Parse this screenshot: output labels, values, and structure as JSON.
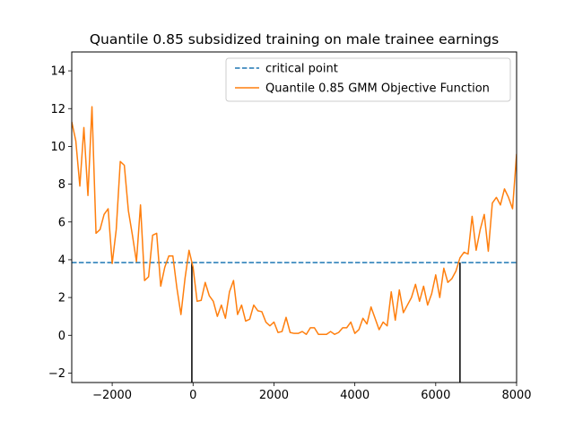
{
  "chart_data": {
    "type": "line",
    "title": "Quantile 0.85 subsidized training on male trainee earnings",
    "xlabel": "",
    "ylabel": "",
    "xlim": [
      -3000,
      8000
    ],
    "ylim": [
      -2.5,
      15
    ],
    "x_ticks": [
      -2000,
      0,
      2000,
      4000,
      6000,
      8000
    ],
    "x_tick_labels": [
      "−2000",
      "0",
      "2000",
      "4000",
      "6000",
      "8000"
    ],
    "y_ticks": [
      -2,
      0,
      2,
      4,
      6,
      8,
      10,
      12,
      14
    ],
    "y_tick_labels": [
      "−2",
      "0",
      "2",
      "4",
      "6",
      "8",
      "10",
      "12",
      "14"
    ],
    "grid": false,
    "legend_position": "top-right",
    "critical_value": 3.85,
    "interval": [
      -30,
      6600
    ],
    "colors": {
      "critical": "#1f77b4",
      "objective": "#ff7f0e",
      "bound": "#000000"
    },
    "series": [
      {
        "name": "critical point",
        "style": "dashed",
        "x": [
          -3000,
          8000
        ],
        "values": [
          3.85,
          3.85
        ]
      },
      {
        "name": "Quantile 0.85 GMM Objective Function",
        "style": "solid",
        "x": [
          -3000,
          -2900,
          -2800,
          -2700,
          -2600,
          -2500,
          -2400,
          -2300,
          -2200,
          -2100,
          -2000,
          -1900,
          -1800,
          -1700,
          -1600,
          -1500,
          -1400,
          -1300,
          -1200,
          -1100,
          -1000,
          -900,
          -800,
          -700,
          -600,
          -500,
          -400,
          -300,
          -200,
          -100,
          0,
          100,
          200,
          300,
          400,
          500,
          600,
          700,
          800,
          900,
          1000,
          1100,
          1200,
          1300,
          1400,
          1500,
          1600,
          1700,
          1800,
          1900,
          2000,
          2100,
          2200,
          2300,
          2400,
          2500,
          2600,
          2700,
          2800,
          2900,
          3000,
          3100,
          3200,
          3300,
          3400,
          3500,
          3600,
          3700,
          3800,
          3900,
          4000,
          4100,
          4200,
          4300,
          4400,
          4500,
          4600,
          4700,
          4800,
          4900,
          5000,
          5100,
          5200,
          5300,
          5400,
          5500,
          5600,
          5700,
          5800,
          5900,
          6000,
          6100,
          6200,
          6300,
          6400,
          6500,
          6600,
          6700,
          6800,
          6900,
          7000,
          7100,
          7200,
          7300,
          7400,
          7500,
          7600,
          7700,
          7800,
          7900,
          8000
        ],
        "values": [
          11.3,
          10.3,
          7.9,
          11.0,
          7.4,
          12.1,
          5.4,
          5.6,
          6.4,
          6.7,
          3.8,
          5.6,
          9.2,
          9.0,
          6.6,
          5.3,
          3.9,
          6.9,
          2.9,
          3.1,
          5.3,
          5.4,
          2.6,
          3.6,
          4.2,
          4.2,
          2.5,
          1.1,
          3.0,
          4.5,
          3.6,
          1.8,
          1.85,
          2.8,
          2.1,
          1.8,
          1.0,
          1.6,
          0.9,
          2.3,
          2.9,
          1.1,
          1.6,
          0.75,
          0.85,
          1.6,
          1.3,
          1.25,
          0.7,
          0.5,
          0.7,
          0.15,
          0.2,
          0.95,
          0.15,
          0.1,
          0.1,
          0.2,
          0.05,
          0.4,
          0.4,
          0.05,
          0.05,
          0.05,
          0.2,
          0.05,
          0.15,
          0.4,
          0.4,
          0.7,
          0.1,
          0.3,
          0.9,
          0.6,
          1.5,
          0.9,
          0.3,
          0.7,
          0.5,
          2.3,
          0.8,
          2.4,
          1.2,
          1.6,
          2.0,
          2.7,
          1.8,
          2.6,
          1.6,
          2.2,
          3.2,
          2.0,
          3.55,
          2.8,
          3.0,
          3.4,
          4.1,
          4.4,
          4.3,
          6.3,
          4.5,
          5.6,
          6.4,
          4.45,
          7.0,
          7.3,
          6.9,
          7.75,
          7.3,
          6.7,
          9.6
        ]
      }
    ]
  }
}
